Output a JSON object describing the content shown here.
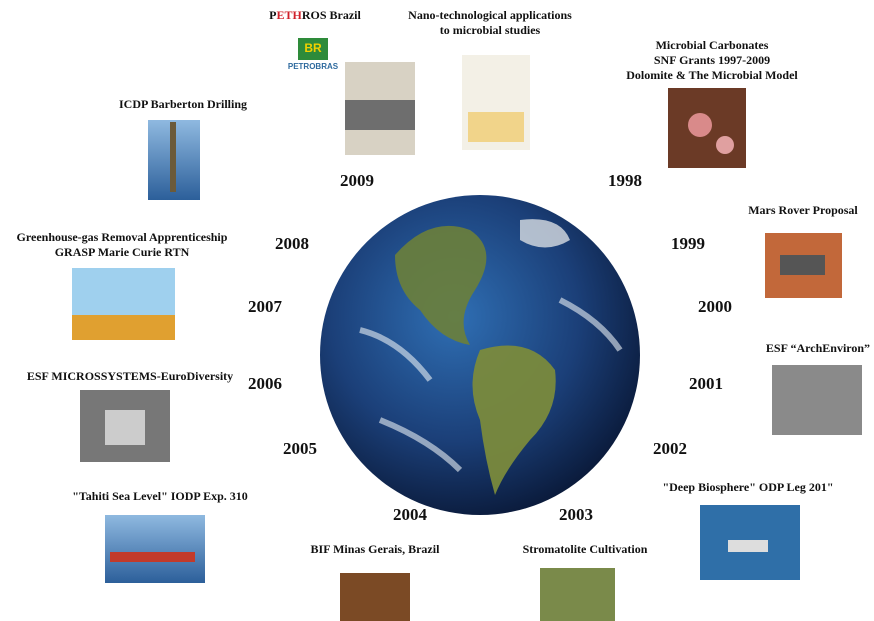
{
  "years": [
    "2009",
    "1998",
    "2008",
    "1999",
    "2007",
    "2000",
    "2006",
    "2001",
    "2005",
    "2002",
    "2004",
    "2003"
  ],
  "projects": [
    {
      "title_parts": [
        "P",
        "ETH",
        "ROS Brazil"
      ],
      "logo": {
        "mark": "BR",
        "name": "PETROBRAS"
      }
    },
    {
      "lines": [
        "Nano-technological applications",
        "to microbial studies"
      ]
    },
    {
      "lines": [
        "Microbial Carbonates",
        "SNF Grants 1997-2009",
        "Dolomite & The Microbial Model"
      ]
    },
    {
      "lines": [
        "ICDP Barberton Drilling"
      ]
    },
    {
      "lines": [
        "Greenhouse-gas Removal Apprenticeship",
        "GRASP Marie Curie RTN"
      ]
    },
    {
      "lines": [
        "Mars Rover Proposal"
      ]
    },
    {
      "lines": [
        "ESF MICROSSYSTEMS-EuroDiversity"
      ]
    },
    {
      "lines": [
        "ESF “ArchEnviron”"
      ]
    },
    {
      "lines": [
        "\"Tahiti Sea Level\"  IODP Exp. 310"
      ]
    },
    {
      "lines": [
        "\"Deep Biosphere\"  ODP Leg 201\""
      ]
    },
    {
      "lines": [
        "BIF Minas Gerais, Brazil"
      ]
    },
    {
      "lines": [
        "Stromatolite Cultivation"
      ]
    }
  ]
}
